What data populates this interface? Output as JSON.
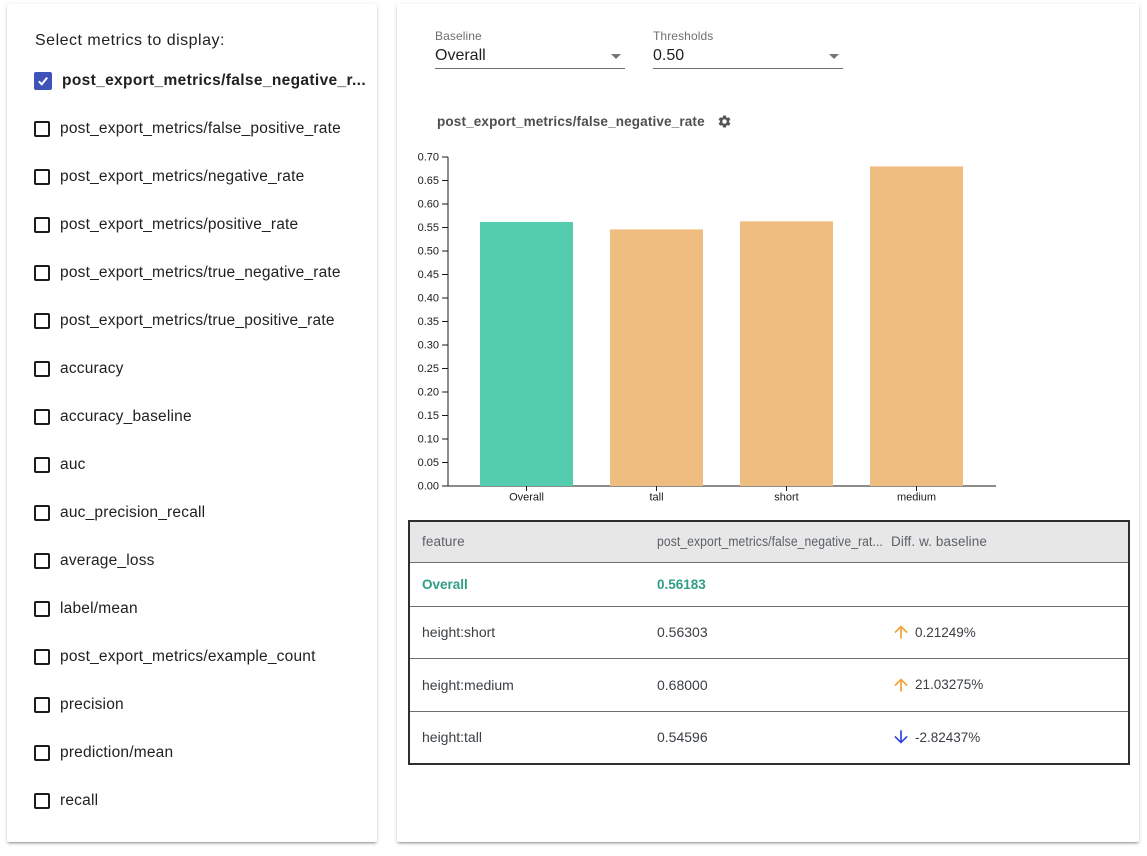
{
  "sidebar": {
    "title": "Select metrics to display:",
    "metrics": [
      {
        "label": "post_export_metrics/false_negative_r...",
        "checked": true
      },
      {
        "label": "post_export_metrics/false_positive_rate",
        "checked": false
      },
      {
        "label": "post_export_metrics/negative_rate",
        "checked": false
      },
      {
        "label": "post_export_metrics/positive_rate",
        "checked": false
      },
      {
        "label": "post_export_metrics/true_negative_rate",
        "checked": false
      },
      {
        "label": "post_export_metrics/true_positive_rate",
        "checked": false
      },
      {
        "label": "accuracy",
        "checked": false
      },
      {
        "label": "accuracy_baseline",
        "checked": false
      },
      {
        "label": "auc",
        "checked": false
      },
      {
        "label": "auc_precision_recall",
        "checked": false
      },
      {
        "label": "average_loss",
        "checked": false
      },
      {
        "label": "label/mean",
        "checked": false
      },
      {
        "label": "post_export_metrics/example_count",
        "checked": false
      },
      {
        "label": "precision",
        "checked": false
      },
      {
        "label": "prediction/mean",
        "checked": false
      },
      {
        "label": "recall",
        "checked": false
      }
    ],
    "checkbox_checked_color": "#4053b8"
  },
  "controls": {
    "baseline": {
      "label": "Baseline",
      "value": "Overall"
    },
    "thresholds": {
      "label": "Thresholds",
      "value": "0.50"
    }
  },
  "chart_data": {
    "type": "bar",
    "title": "post_export_metrics/false_negative_rate",
    "categories": [
      "Overall",
      "tall",
      "short",
      "medium"
    ],
    "values": [
      0.56183,
      0.54596,
      0.56303,
      0.68
    ],
    "bar_colors": [
      "#54ccae",
      "#f0bd80",
      "#f0bd80",
      "#f0bd80"
    ],
    "baseline_color": "#54ccae",
    "slice_color": "#f0bd80",
    "ylim": [
      0,
      0.7
    ],
    "ytick_step": 0.05,
    "grid": false,
    "legend": "none",
    "xlabel": "",
    "ylabel": ""
  },
  "table": {
    "columns": [
      "feature",
      "post_export_metrics/false_negative_rat...",
      "Diff. w. baseline"
    ],
    "rows": [
      {
        "feature": "Overall",
        "value": "0.56183",
        "diff": "",
        "arrow": "none",
        "baseline": true
      },
      {
        "feature": "height:short",
        "value": "0.56303",
        "diff": "0.21249%",
        "arrow": "up",
        "baseline": false
      },
      {
        "feature": "height:medium",
        "value": "0.68000",
        "diff": "21.03275%",
        "arrow": "up",
        "baseline": false
      },
      {
        "feature": "height:tall",
        "value": "0.54596",
        "diff": "-2.82437%",
        "arrow": "down",
        "baseline": false
      }
    ],
    "baseline_text_color": "#2f9e83",
    "up_arrow_color": "#f2a133",
    "down_arrow_color": "#2e43df"
  }
}
